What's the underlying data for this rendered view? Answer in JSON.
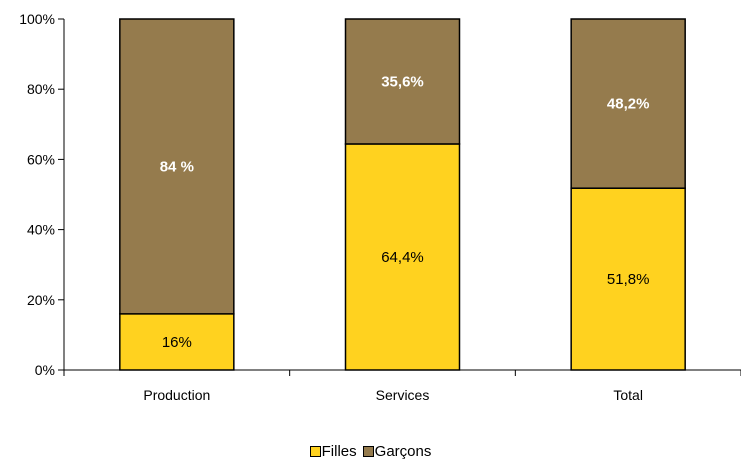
{
  "chart_data": {
    "type": "bar",
    "stacked": true,
    "categories": [
      "Production",
      "Services",
      "Total"
    ],
    "series": [
      {
        "name": "Filles",
        "values": [
          16,
          64.4,
          51.8
        ],
        "labels": [
          "16%",
          "64,4%",
          "51,8%"
        ],
        "color": "#FFD21F",
        "label_color": "#000000",
        "label_bold": false
      },
      {
        "name": "Garçons",
        "values": [
          84,
          35.6,
          48.2
        ],
        "labels": [
          "84 %",
          "35,6%",
          "48,2%"
        ],
        "color": "#957B4D",
        "label_color": "#FFFFFF",
        "label_bold": true
      }
    ],
    "ylim": [
      0,
      100
    ],
    "yticks": [
      0,
      20,
      40,
      60,
      80,
      100
    ],
    "ytick_labels": [
      "0%",
      "20%",
      "40%",
      "60%",
      "80%",
      "100%"
    ],
    "grid": false,
    "legend_position": "bottom"
  }
}
